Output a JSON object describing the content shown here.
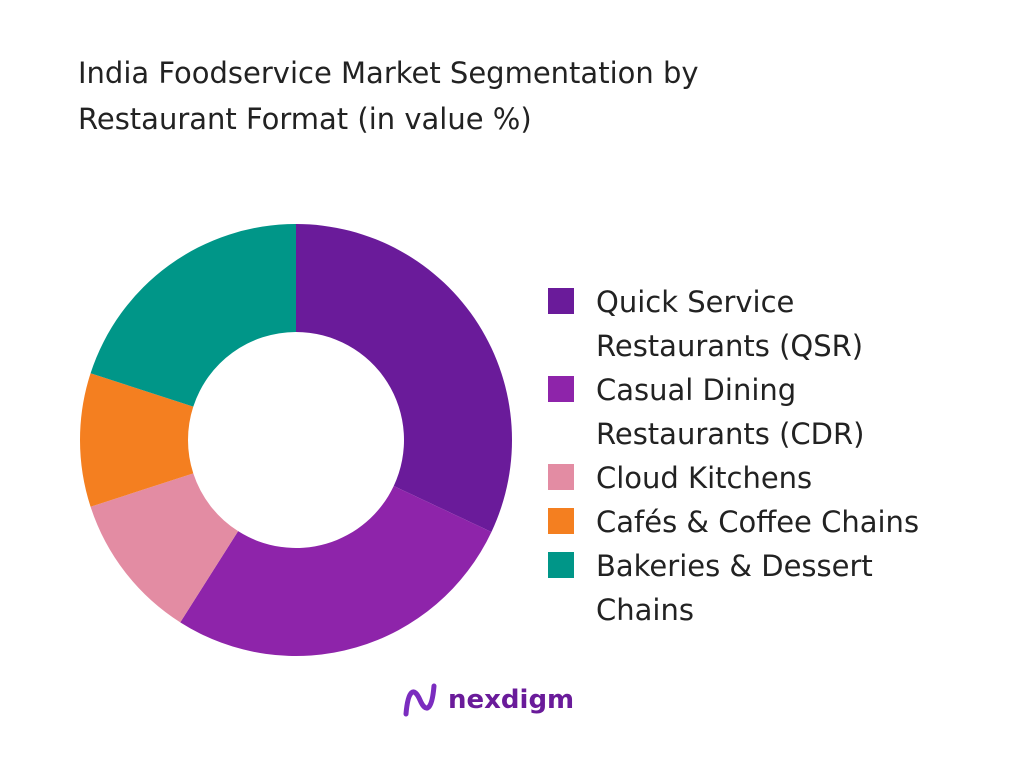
{
  "chart_data": {
    "type": "donut",
    "title": "India Foodservice Market Segmentation by Restaurant Format (in value %)",
    "categories": [
      "Quick Service Restaurants (QSR)",
      "Casual Dining Restaurants (CDR)",
      "Cloud Kitchens",
      "Cafés & Coffee Chains",
      "Bakeries & Dessert Chains"
    ],
    "values": [
      32,
      27,
      11,
      10,
      20
    ],
    "colors": [
      "#6a1b9a",
      "#8e24aa",
      "#e38ca3",
      "#f47f20",
      "#009688"
    ],
    "legend": "right"
  },
  "logo": "nexdigm"
}
